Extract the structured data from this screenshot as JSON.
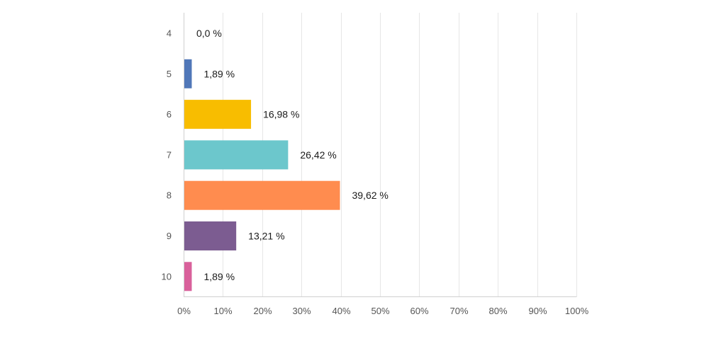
{
  "chart_data": {
    "type": "bar",
    "orientation": "horizontal",
    "categories": [
      "4",
      "5",
      "6",
      "7",
      "8",
      "9",
      "10"
    ],
    "values": [
      0.0,
      1.89,
      16.98,
      26.42,
      39.62,
      13.21,
      1.89
    ],
    "value_labels": [
      "0,0 %",
      "1,89 %",
      "16,98 %",
      "26,42 %",
      "39,62 %",
      "13,21 %",
      "1,89 %"
    ],
    "colors": [
      "#5b7fbf",
      "#5077b8",
      "#f8bd00",
      "#6cc7cc",
      "#ff8c4f",
      "#7c5c91",
      "#d9609b"
    ],
    "xlim": [
      0,
      100
    ],
    "xticks": [
      0,
      10,
      20,
      30,
      40,
      50,
      60,
      70,
      80,
      90,
      100
    ],
    "xtick_labels": [
      "0%",
      "10%",
      "20%",
      "30%",
      "40%",
      "50%",
      "60%",
      "70%",
      "80%",
      "90%",
      "100%"
    ],
    "grid": true,
    "title": "",
    "xlabel": "",
    "ylabel": ""
  }
}
